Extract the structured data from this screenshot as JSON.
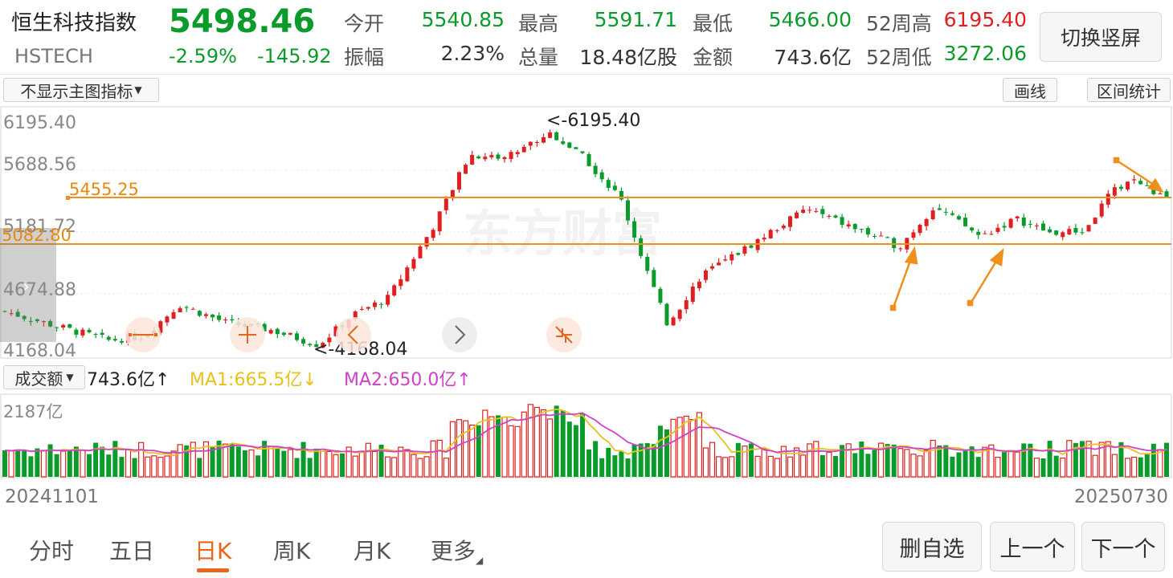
{
  "header": {
    "name": "恒生科技指数",
    "code": "HSTECH",
    "price": "5498.46",
    "change_pct": "-2.59%",
    "change": "-145.92",
    "stats": [
      {
        "label": "今开",
        "value": "5540.85",
        "color": "#0a9b2a"
      },
      {
        "label": "最高",
        "value": "5591.71",
        "color": "#0a9b2a"
      },
      {
        "label": "最低",
        "value": "5466.00",
        "color": "#0a9b2a"
      },
      {
        "label": "振幅",
        "value": "2.23%",
        "color": "#333333"
      },
      {
        "label": "总量",
        "value": "18.48亿股",
        "color": "#333333"
      },
      {
        "label": "金额",
        "value": "743.6亿",
        "color": "#333333"
      }
    ],
    "w52_high_label": "52周高",
    "w52_high": "6195.40",
    "w52_low_label": "52周低",
    "w52_low": "3272.06",
    "switch_button": "切换竖屏"
  },
  "toolbar": {
    "indicator_select": "不显示主图指标",
    "draw_button": "画线",
    "range_stats_button": "区间统计"
  },
  "main_chart": {
    "y_ticks": [
      "6195.40",
      "5688.56",
      "5181.72",
      "4674.88",
      "4168.04"
    ],
    "max_label": "<-6195.40",
    "min_label": "<-4168.04",
    "hline_upper": "5455.25",
    "hline_lower": "5082.80",
    "watermark": "东方财富"
  },
  "volume_panel": {
    "selector": "成交额",
    "amount": "743.6亿↑",
    "ma1": "MA1:665.5亿↓",
    "ma2": "MA2:650.0亿↑",
    "max_label": "2187亿",
    "ma1_color": "#e8c21c",
    "ma2_color": "#d040c8"
  },
  "x_axis": {
    "start": "20241101",
    "end": "20250730"
  },
  "colors": {
    "up": "#e02020",
    "down": "#0a9b2a",
    "accent": "#f0901c"
  },
  "tabs": [
    {
      "label": "分时",
      "active": false
    },
    {
      "label": "五日",
      "active": false
    },
    {
      "label": "日K",
      "active": true
    },
    {
      "label": "周K",
      "active": false
    },
    {
      "label": "月K",
      "active": false
    },
    {
      "label": "更多",
      "active": false
    }
  ],
  "bottom_buttons": {
    "delete_watch": "删自选",
    "prev": "上一个",
    "next": "下一个"
  },
  "chart_data": {
    "type": "candlestick",
    "x_start": "20241101",
    "x_end": "20250730",
    "ylim": [
      4168.04,
      6195.4
    ],
    "keypoints": [
      {
        "pos": 0.0,
        "close": 4500
      },
      {
        "pos": 0.04,
        "close": 4380
      },
      {
        "pos": 0.09,
        "close": 4240
      },
      {
        "pos": 0.12,
        "close": 4280
      },
      {
        "pos": 0.15,
        "close": 4560
      },
      {
        "pos": 0.19,
        "close": 4400
      },
      {
        "pos": 0.23,
        "close": 4330
      },
      {
        "pos": 0.27,
        "close": 4200
      },
      {
        "pos": 0.3,
        "close": 4470
      },
      {
        "pos": 0.33,
        "close": 4620
      },
      {
        "pos": 0.37,
        "close": 5280
      },
      {
        "pos": 0.4,
        "close": 5900
      },
      {
        "pos": 0.43,
        "close": 5880
      },
      {
        "pos": 0.47,
        "close": 6100
      },
      {
        "pos": 0.5,
        "close": 5860
      },
      {
        "pos": 0.53,
        "close": 5510
      },
      {
        "pos": 0.57,
        "close": 4380
      },
      {
        "pos": 0.6,
        "close": 4830
      },
      {
        "pos": 0.64,
        "close": 5080
      },
      {
        "pos": 0.69,
        "close": 5420
      },
      {
        "pos": 0.73,
        "close": 5250
      },
      {
        "pos": 0.77,
        "close": 5080
      },
      {
        "pos": 0.8,
        "close": 5440
      },
      {
        "pos": 0.84,
        "close": 5170
      },
      {
        "pos": 0.87,
        "close": 5330
      },
      {
        "pos": 0.9,
        "close": 5200
      },
      {
        "pos": 0.93,
        "close": 5220
      },
      {
        "pos": 0.95,
        "close": 5540
      },
      {
        "pos": 0.97,
        "close": 5690
      },
      {
        "pos": 1.0,
        "close": 5498.46
      }
    ],
    "volume_max": 2187
  }
}
